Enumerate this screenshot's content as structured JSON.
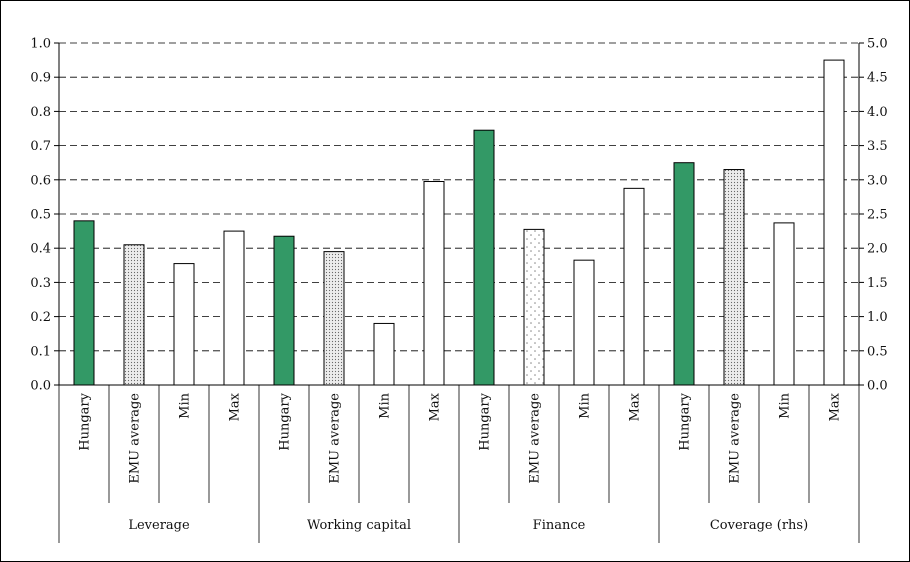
{
  "chart_data": {
    "type": "bar",
    "groups": [
      {
        "name": "Leverage",
        "axis": "left",
        "bars": [
          {
            "label": "Hungary",
            "value": 0.48,
            "style": "hungary"
          },
          {
            "label": "EMU average",
            "value": 0.41,
            "style": "emu"
          },
          {
            "label": "Min",
            "value": 0.355,
            "style": "plain"
          },
          {
            "label": "Max",
            "value": 0.45,
            "style": "plain"
          }
        ]
      },
      {
        "name": "Working capital",
        "axis": "left",
        "bars": [
          {
            "label": "Hungary",
            "value": 0.435,
            "style": "hungary"
          },
          {
            "label": "EMU average",
            "value": 0.39,
            "style": "emu"
          },
          {
            "label": "Min",
            "value": 0.18,
            "style": "plain"
          },
          {
            "label": "Max",
            "value": 0.595,
            "style": "plain"
          }
        ]
      },
      {
        "name": "Finance",
        "axis": "left",
        "bars": [
          {
            "label": "Hungary",
            "value": 0.745,
            "style": "hungary"
          },
          {
            "label": "EMU average",
            "value": 0.455,
            "style": "emu-sparse"
          },
          {
            "label": "Min",
            "value": 0.365,
            "style": "plain"
          },
          {
            "label": "Max",
            "value": 0.575,
            "style": "plain"
          }
        ]
      },
      {
        "name": "Coverage (rhs)",
        "axis": "right",
        "bars": [
          {
            "label": "Hungary",
            "value": 3.25,
            "style": "hungary"
          },
          {
            "label": "EMU average",
            "value": 3.15,
            "style": "emu"
          },
          {
            "label": "Min",
            "value": 2.37,
            "style": "plain"
          },
          {
            "label": "Max",
            "value": 4.75,
            "style": "plain"
          }
        ]
      }
    ],
    "y_left": {
      "min": 0,
      "max": 1.0,
      "ticks": [
        "0.0",
        "0.1",
        "0.2",
        "0.3",
        "0.4",
        "0.5",
        "0.6",
        "0.7",
        "0.8",
        "0.9",
        "1.0"
      ]
    },
    "y_right": {
      "min": 0,
      "max": 5.0,
      "ticks": [
        "0.0",
        "0.5",
        "1.0",
        "1.5",
        "2.0",
        "2.5",
        "3.0",
        "3.5",
        "4.0",
        "4.5",
        "5.0"
      ]
    },
    "grid": "dashed horizontal",
    "colors": {
      "hungary": "#339966",
      "emu": "#e6e6e6",
      "plain": "#ffffff",
      "axis": "#000000"
    }
  }
}
